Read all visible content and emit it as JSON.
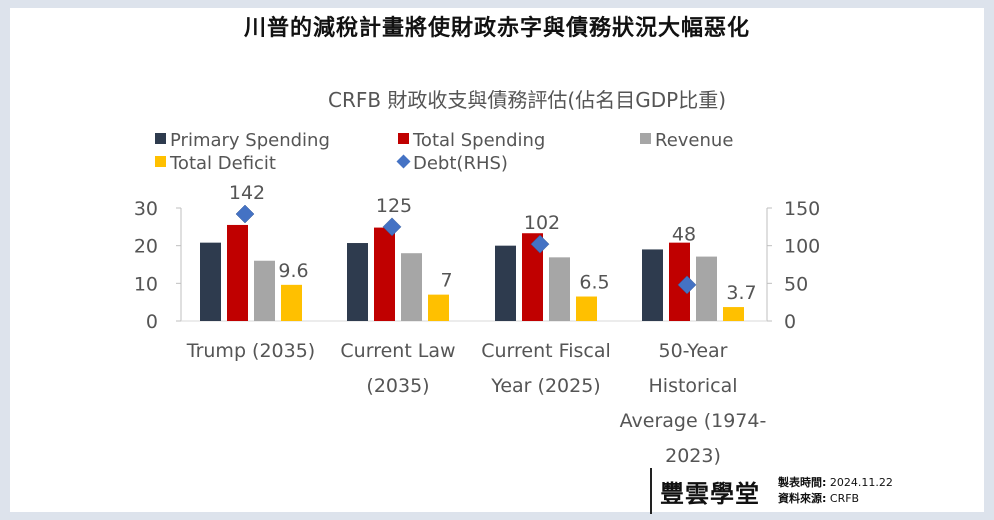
{
  "page_title": "川普的減稅計畫將使財政赤字與債務狀況大幅惡化",
  "chart_data": {
    "type": "bar",
    "title": "CRFB 財政收支與債務評估(佔名目GDP比重)",
    "categories": [
      "Trump (2035)",
      "Current Law (2035)",
      "Current Fiscal Year (2025)",
      "50-Year Historical Average (1974-2023)"
    ],
    "category_lines": [
      [
        "Trump (2035)"
      ],
      [
        "Current Law",
        "(2035)"
      ],
      [
        "Current Fiscal",
        "Year (2025)"
      ],
      [
        "50-Year",
        "Historical",
        "Average (1974-",
        "2023)"
      ]
    ],
    "series": [
      {
        "name": "Primary Spending",
        "values": [
          20.8,
          20.7,
          20.0,
          19.0
        ],
        "color": "#2e3b4e"
      },
      {
        "name": "Total Spending",
        "values": [
          25.5,
          24.8,
          23.3,
          20.8
        ],
        "color": "#c00000"
      },
      {
        "name": "Revenue",
        "values": [
          16.0,
          18.0,
          16.9,
          17.1
        ],
        "color": "#a6a6a6"
      },
      {
        "name": "Total Deficit",
        "values": [
          9.6,
          7.0,
          6.5,
          3.7
        ],
        "color": "#ffc000"
      }
    ],
    "deficit_labels": [
      "9.6",
      "7",
      "6.5",
      "3.7"
    ],
    "debt_series": {
      "name": "Debt(RHS)",
      "values": [
        142,
        125,
        102,
        48
      ],
      "labels": [
        "142",
        "125",
        "102",
        "48"
      ],
      "color": "#4472c4"
    },
    "ylim": [
      0,
      30
    ],
    "yticks": [
      "0",
      "10",
      "20",
      "30"
    ],
    "y2lim": [
      0,
      150
    ],
    "y2ticks": [
      "0",
      "50",
      "100",
      "150"
    ],
    "xlabel": "",
    "ylabel": "",
    "legend_position": "top-left",
    "grid": false
  },
  "footer": {
    "brand": "豐雲學堂",
    "made_label": "製表時間:",
    "made_value": "2024.11.22",
    "source_label": "資料來源:",
    "source_value": "CRFB"
  }
}
